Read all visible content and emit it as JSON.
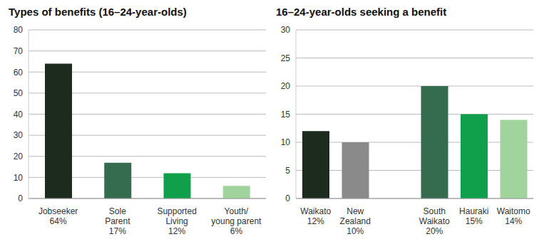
{
  "chart_data": [
    {
      "type": "bar",
      "title": "Types of benefits (16–24-year-olds)",
      "categories": [
        "Jobseeker",
        "Sole Parent",
        "Supported Living",
        "Youth/ young parent"
      ],
      "values": [
        64,
        17,
        12,
        6
      ],
      "value_labels": [
        "64%",
        "17%",
        "12%",
        "6%"
      ],
      "colors": [
        "#1c2b1e",
        "#356b4e",
        "#10a04c",
        "#a0d49c"
      ],
      "ylim": [
        0,
        80
      ],
      "yticks": [
        0,
        10,
        20,
        30,
        40,
        50,
        60,
        70,
        80
      ],
      "grid": true
    },
    {
      "type": "bar",
      "title": "16–24-year-olds seeking a benefit",
      "categories": [
        "Waikato",
        "New Zealand",
        null,
        "South Waikato",
        "Hauraki",
        "Waitomo"
      ],
      "values": [
        12,
        10,
        null,
        20,
        15,
        14
      ],
      "value_labels": [
        "12%",
        "10%",
        null,
        "20%",
        "15%",
        "14%"
      ],
      "colors": [
        "#1c2b1e",
        "#8a8a8a",
        "#ffffff",
        "#356b4e",
        "#10a04c",
        "#a0d49c"
      ],
      "ylim": [
        0,
        30
      ],
      "yticks": [
        0,
        5,
        10,
        15,
        20,
        25,
        30
      ],
      "grid": true
    }
  ]
}
